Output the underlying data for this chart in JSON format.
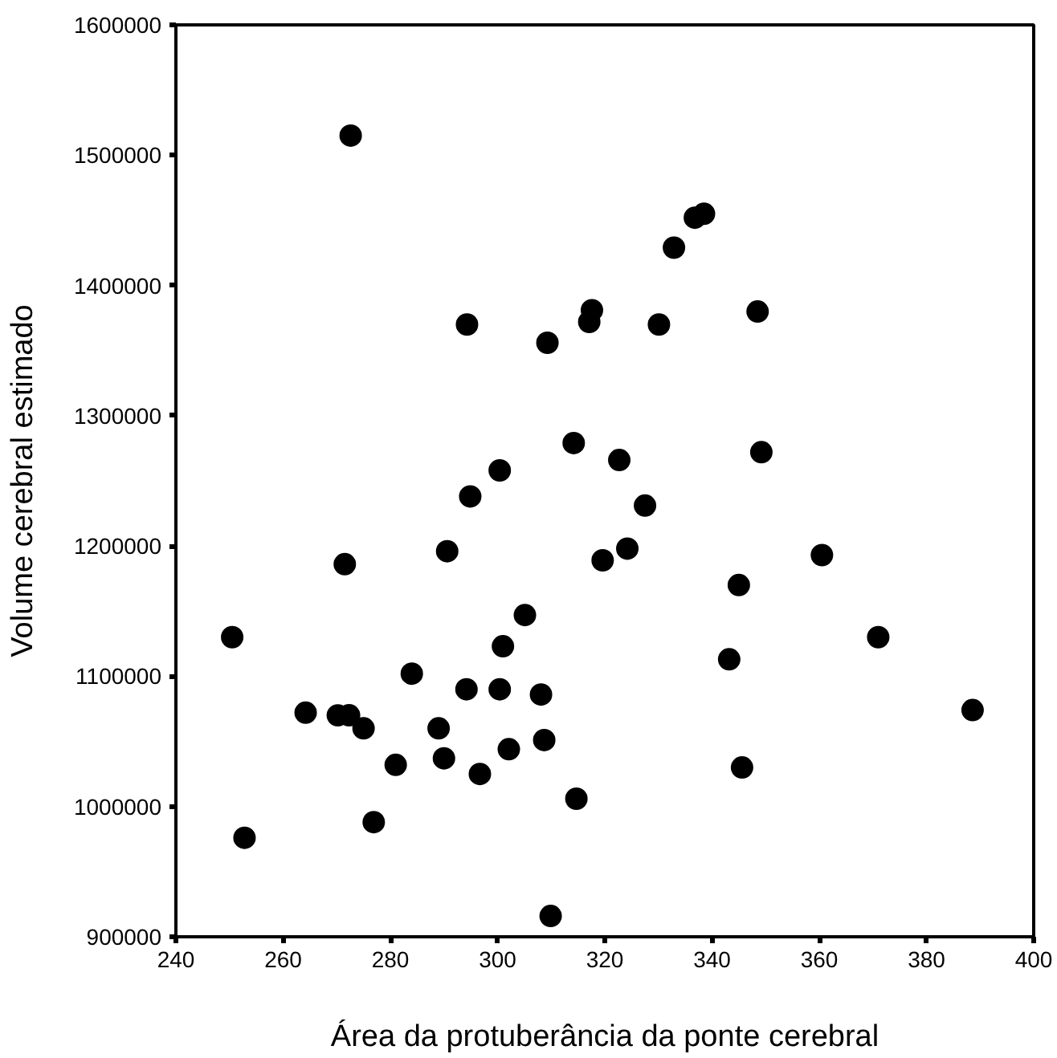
{
  "chart_data": {
    "type": "scatter",
    "xlabel": "Área da protuberância da ponte cerebral",
    "ylabel": "Volume cerebral estimado",
    "xlim": [
      240,
      400
    ],
    "xticks": [
      240,
      260,
      280,
      300,
      320,
      340,
      360,
      380,
      400
    ],
    "ylim": [
      900000,
      1600000
    ],
    "yticks": [
      900000,
      1000000,
      1100000,
      1200000,
      1300000,
      1400000,
      1500000,
      1600000
    ],
    "grid": false,
    "marker": "circle",
    "series": [
      {
        "color": "#000000",
        "x": [
          250.5,
          252.8,
          264.2,
          271.5,
          270.2,
          272.3,
          275.0,
          276.9,
          281.0,
          284.0,
          289.0,
          290.0,
          290.6,
          294.2,
          296.7,
          300.4,
          301.0,
          302.1,
          305.1,
          308.1,
          308.7,
          309.9,
          314.7,
          319.6,
          272.6,
          294.3,
          309.3,
          317.6,
          317.1,
          314.2,
          300.4,
          294.9,
          322.7,
          336.8,
          338.5,
          332.9,
          330.1,
          348.5,
          349.2,
          327.5,
          324.2,
          360.5,
          345.0,
          371.0,
          343.2,
          388.6,
          345.6
        ],
        "values": [
          1130000,
          976000,
          1072000,
          1186000,
          1070000,
          1070000,
          1060000,
          988000,
          1032000,
          1102000,
          1060000,
          1037000,
          1196000,
          1090000,
          1025000,
          1090000,
          1123000,
          1044000,
          1147000,
          1086000,
          1051000,
          916000,
          1006000,
          1189000,
          1515000,
          1370000,
          1356000,
          1381000,
          1372000,
          1279000,
          1258000,
          1238000,
          1266000,
          1452000,
          1455000,
          1429000,
          1370000,
          1380000,
          1272000,
          1231000,
          1198000,
          1193000,
          1170000,
          1130000,
          1113000,
          1074000,
          1030000
        ]
      }
    ]
  }
}
